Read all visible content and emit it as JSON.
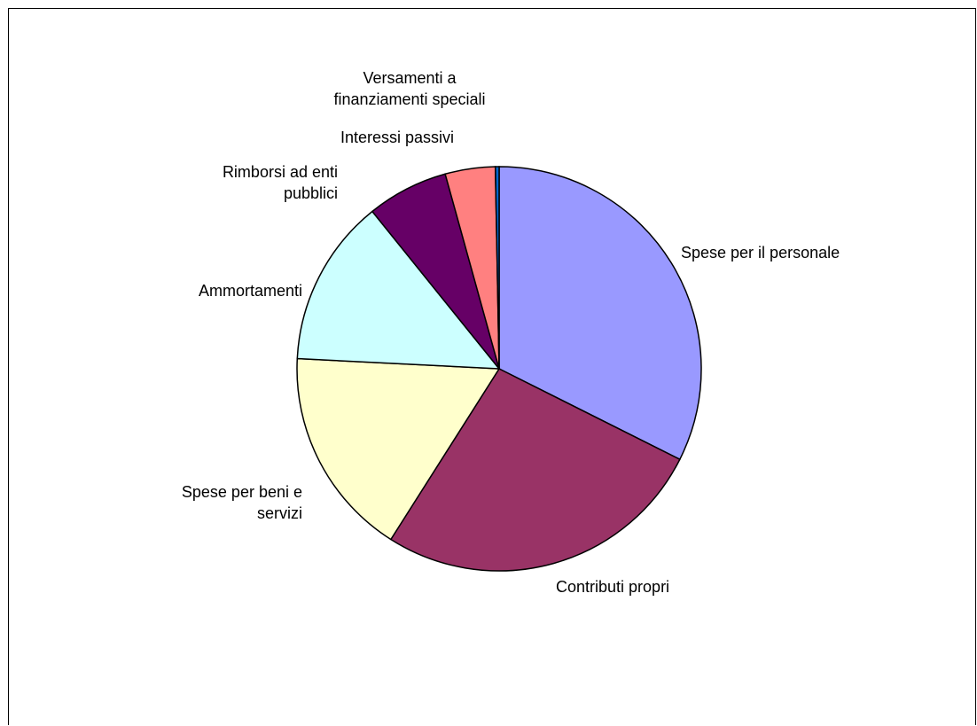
{
  "chart_data": {
    "type": "pie",
    "title": "",
    "slices": [
      {
        "label": "Spese per il personale",
        "value": 32.4,
        "color": "#9999FF"
      },
      {
        "label": "Contributi propri",
        "value": 26.6,
        "color": "#993366"
      },
      {
        "label": "Spese per beni e servizi",
        "value": 16.8,
        "color": "#FFFFCC"
      },
      {
        "label": "Ammortamenti",
        "value": 13.4,
        "color": "#CCFFFF"
      },
      {
        "label": "Rimborsi ad enti pubblici",
        "value": 6.5,
        "color": "#660066"
      },
      {
        "label": "Interessi passivi",
        "value": 4.0,
        "color": "#FF8080"
      },
      {
        "label": "Versamenti a finanziamenti speciali",
        "value": 0.3,
        "color": "#0066CC"
      }
    ],
    "start_at": "12 o'clock",
    "direction": "clockwise",
    "legend": "none",
    "data_labels": "category names outside slices"
  }
}
